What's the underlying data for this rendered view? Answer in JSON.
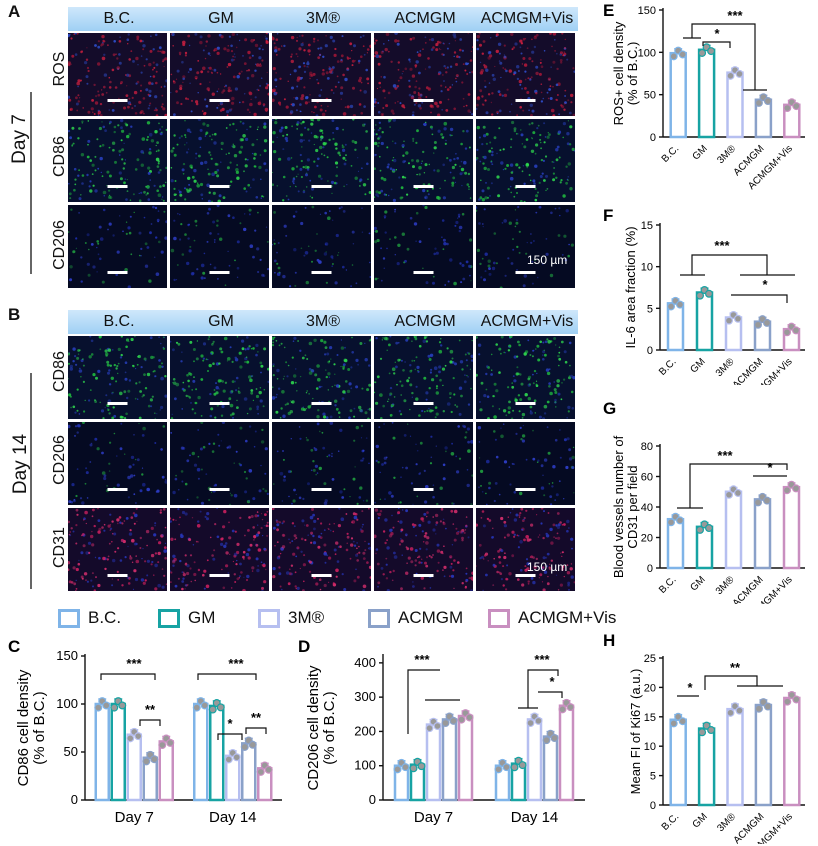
{
  "panels": {
    "A": {
      "letter": "A",
      "columns": [
        "B.C.",
        "GM",
        "3M®",
        "ACMGM",
        "ACMGM+Vis"
      ],
      "rows": [
        "ROS",
        "CD86",
        "CD206"
      ],
      "day": "Day 7",
      "scale_text": "150 µm"
    },
    "B": {
      "letter": "B",
      "columns": [
        "B.C.",
        "GM",
        "3M®",
        "ACMGM",
        "ACMGM+Vis"
      ],
      "rows": [
        "CD86",
        "CD206",
        "CD31"
      ],
      "day": "Day 14",
      "scale_text": "150 µm"
    }
  },
  "legend": [
    {
      "label": "B.C.",
      "color": "#7fb4e8"
    },
    {
      "label": "GM",
      "color": "#17a3a3"
    },
    {
      "label": "3M®",
      "color": "#b6bff0"
    },
    {
      "label": "ACMGM",
      "color": "#8aa1c9"
    },
    {
      "label": "ACMGM+Vis",
      "color": "#c98fc0"
    }
  ],
  "chart_data": [
    {
      "panel": "C",
      "type": "bar",
      "categories": [
        "Day 7",
        "Day 14"
      ],
      "series": [
        {
          "name": "B.C.",
          "values": [
            100,
            100
          ]
        },
        {
          "name": "GM",
          "values": [
            100,
            98
          ]
        },
        {
          "name": "3M®",
          "values": [
            68,
            46
          ]
        },
        {
          "name": "ACMGM",
          "values": [
            44,
            59
          ]
        },
        {
          "name": "ACMGM+Vis",
          "values": [
            61,
            33
          ]
        }
      ],
      "ylabel": "CD86 cell density\n(% of B.C.)",
      "ylim": [
        0,
        150
      ],
      "yticks": [
        "0",
        "50",
        "100",
        "150"
      ],
      "significance": [
        "***",
        "**",
        "***",
        "*",
        "**"
      ]
    },
    {
      "panel": "D",
      "type": "bar",
      "categories": [
        "Day 7",
        "Day 14"
      ],
      "series": [
        {
          "name": "B.C.",
          "values": [
            100,
            100
          ]
        },
        {
          "name": "GM",
          "values": [
            103,
            106
          ]
        },
        {
          "name": "3M®",
          "values": [
            220,
            235
          ]
        },
        {
          "name": "ACMGM",
          "values": [
            235,
            185
          ]
        },
        {
          "name": "ACMGM+Vis",
          "values": [
            245,
            275
          ]
        }
      ],
      "ylabel": "CD206 cell density\n(% of B.C.)",
      "ylim": [
        0,
        420
      ],
      "yticks": [
        "0",
        "100",
        "200",
        "300",
        "400"
      ],
      "significance": [
        "***",
        "***",
        "*"
      ]
    },
    {
      "panel": "E",
      "type": "bar",
      "categories": [
        "B.C.",
        "GM",
        "3M®",
        "ACMGM",
        "ACMGM+Vis"
      ],
      "values": [
        99,
        103,
        76,
        44,
        38
      ],
      "ylabel": "ROS+ cell density\n(% of B.C.)",
      "ylim": [
        0,
        150
      ],
      "yticks": [
        "0",
        "50",
        "100",
        "150"
      ],
      "significance": [
        "***",
        "*"
      ]
    },
    {
      "panel": "F",
      "type": "bar",
      "categories": [
        "B.C.",
        "GM",
        "3M®",
        "ACMGM",
        "ACMGM+Vis"
      ],
      "values": [
        5.6,
        6.9,
        3.9,
        3.4,
        2.5
      ],
      "ylabel": "IL-6 area  fraction (%)",
      "ylim": [
        0,
        15
      ],
      "yticks": [
        "0",
        "5",
        "10",
        "15"
      ],
      "significance": [
        "***",
        "*"
      ]
    },
    {
      "panel": "G",
      "type": "bar",
      "categories": [
        "B.C.",
        "GM",
        "3M®",
        "ACMGM",
        "ACMGM+Vis"
      ],
      "values": [
        32,
        27,
        50,
        45,
        53
      ],
      "ylabel": "Blood vessels number of\nCD31 per field",
      "ylim": [
        0,
        80
      ],
      "yticks": [
        "0",
        "20",
        "40",
        "60",
        "80"
      ],
      "significance": [
        "***",
        "*"
      ]
    },
    {
      "panel": "H",
      "type": "bar",
      "categories": [
        "B.C.",
        "GM",
        "3M®",
        "ACMGM",
        "ACMGM+Vis"
      ],
      "values": [
        14.5,
        13,
        16.3,
        17,
        18.2
      ],
      "ylabel": "Mean FI of Ki67 (a.u.)",
      "ylim": [
        0,
        25
      ],
      "yticks": [
        "0",
        "5",
        "10",
        "15",
        "20",
        "25"
      ],
      "significance": [
        "*",
        "**"
      ]
    }
  ]
}
